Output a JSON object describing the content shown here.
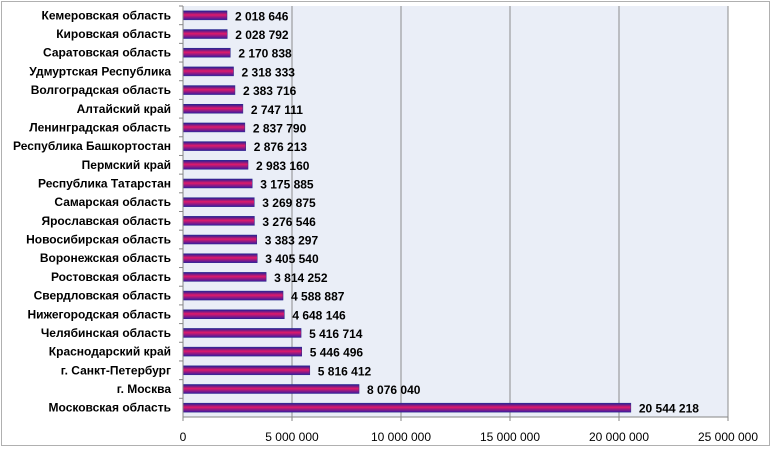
{
  "chart_data": {
    "type": "bar",
    "orientation": "horizontal",
    "categories": [
      "Кемеровская область",
      "Кировская область",
      "Саратовская область",
      "Удмуртская Республика",
      "Волгоградская область",
      "Алтайский край",
      "Ленинградская область",
      "Республика Башкортостан",
      "Пермский край",
      "Республика Татарстан",
      "Самарская область",
      "Ярославская область",
      "Новосибирская область",
      "Воронежская область",
      "Ростовская область",
      "Свердловская область",
      "Нижегородская область",
      "Челябинская область",
      "Краснодарский край",
      "г. Санкт-Петербург",
      "г. Москва",
      "Московская область"
    ],
    "values": [
      2018646,
      2028792,
      2170838,
      2318333,
      2383716,
      2747111,
      2837790,
      2876213,
      2983160,
      3175885,
      3269875,
      3276546,
      3383297,
      3405540,
      3814252,
      4588887,
      4648146,
      5416714,
      5446496,
      5816412,
      8076040,
      20544218
    ],
    "data_labels": [
      "2 018 646",
      "2 028 792",
      "2 170 838",
      "2 318 333",
      "2 383 716",
      "2 747 111",
      "2 837 790",
      "2 876 213",
      "2 983 160",
      "3 175 885",
      "3 269 875",
      "3 276 546",
      "3 383 297",
      "3 405 540",
      "3 814 252",
      "4 588 887",
      "4 648 146",
      "5 416 714",
      "5 446 496",
      "5 816 412",
      "8 076 040",
      "20 544 218"
    ],
    "x_ticks": [
      0,
      5000000,
      10000000,
      15000000,
      20000000,
      25000000
    ],
    "x_tick_labels": [
      "0",
      "5 000 000",
      "10 000 000",
      "15 000 000",
      "20 000 000",
      "25 000 000"
    ],
    "xlim": [
      0,
      25000000
    ],
    "title": "",
    "xlabel": "",
    "ylabel": "",
    "grid": "vertical major gridlines",
    "legend": "none",
    "colors": {
      "bar_top": "#1f1f9a",
      "bar_mid": "#e01a6a",
      "bar_bottom": "#3a1aa0",
      "plot_bg": "#eaeef7",
      "gridline": "#8c8c8c",
      "axis": "#868686"
    }
  }
}
